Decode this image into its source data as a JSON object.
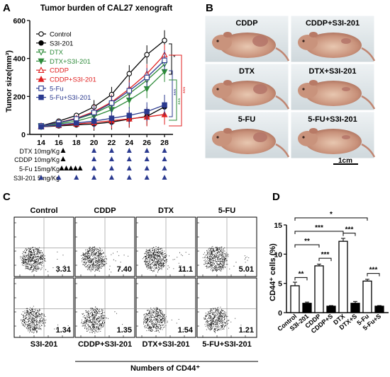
{
  "panel_letters": [
    "A",
    "B",
    "C",
    "D"
  ],
  "panel_a": {
    "title": "Tumor burden of CAL27 xenograft",
    "ylabel": "Tumor size(mm³)",
    "legend": [
      "Control",
      "S3I-201",
      "DTX",
      "DTX+S3I-201",
      "CDDP",
      "CDDP+S3I-201",
      "5-Fu",
      "5-Fu+S3I-201"
    ],
    "significance": [
      "*",
      "***",
      "***",
      "***"
    ],
    "schedule_rows": [
      "DTX 10mg/Kg",
      "CDDP 10mg/Kg",
      "5-Fu 15mg/Kg",
      "S3I-201 5mg/Kg"
    ]
  },
  "chart_data": [
    {
      "type": "line",
      "title": "Tumor burden of CAL27 xenograft",
      "xlabel": "",
      "ylabel": "Tumor size(mm³)",
      "x": [
        14,
        16,
        18,
        20,
        22,
        24,
        26,
        28
      ],
      "ylim": [
        0,
        600
      ],
      "yticks": [
        0,
        200,
        400,
        600
      ],
      "series": [
        {
          "name": "Control",
          "values": [
            45,
            70,
            100,
            145,
            210,
            320,
            420,
            495
          ],
          "color": "#000000",
          "marker": "open-circle"
        },
        {
          "name": "S3I-201",
          "values": [
            40,
            45,
            50,
            55,
            65,
            80,
            95,
            145
          ],
          "color": "#000000",
          "marker": "filled-circle"
        },
        {
          "name": "DTX",
          "values": [
            45,
            60,
            80,
            110,
            155,
            215,
            285,
            370
          ],
          "color": "#2e8b3a",
          "marker": "open-triangle-down"
        },
        {
          "name": "DTX+S3I-201",
          "values": [
            40,
            55,
            70,
            95,
            130,
            180,
            240,
            330
          ],
          "color": "#2e8b3a",
          "marker": "filled-triangle-down"
        },
        {
          "name": "CDDP",
          "values": [
            45,
            62,
            85,
            120,
            170,
            240,
            320,
            420
          ],
          "color": "#e02020",
          "marker": "open-triangle-up"
        },
        {
          "name": "CDDP+S3I-201",
          "values": [
            40,
            48,
            55,
            62,
            72,
            82,
            92,
            105
          ],
          "color": "#e02020",
          "marker": "filled-triangle-up"
        },
        {
          "name": "5-Fu",
          "values": [
            45,
            62,
            82,
            115,
            165,
            230,
            300,
            390
          ],
          "color": "#2b3a8f",
          "marker": "open-square"
        },
        {
          "name": "5-Fu+S3I-201",
          "values": [
            40,
            50,
            60,
            70,
            85,
            100,
            120,
            155
          ],
          "color": "#2b3a8f",
          "marker": "filled-square"
        }
      ]
    },
    {
      "type": "bar",
      "title": "",
      "xlabel": "",
      "ylabel": "CD44⁺ cells (%)",
      "categories": [
        "Control",
        "S3I-201",
        "CDDP",
        "CDDP+S",
        "DTX",
        "DTX+S",
        "5-Fu",
        "5-Fu+S"
      ],
      "values": [
        4.6,
        1.6,
        8.0,
        1.1,
        12.2,
        1.6,
        5.4,
        1.1
      ],
      "errors": [
        0.6,
        0.2,
        0.3,
        0.1,
        0.5,
        0.3,
        0.3,
        0.1
      ],
      "fill": [
        "white",
        "black",
        "white",
        "black",
        "white",
        "black",
        "white",
        "black"
      ],
      "ylim": [
        0,
        15
      ],
      "yticks": [
        0,
        5,
        10,
        15
      ],
      "significance": [
        {
          "pair": [
            0,
            1
          ],
          "label": "**"
        },
        {
          "pair": [
            2,
            3
          ],
          "label": "***"
        },
        {
          "pair": [
            4,
            5
          ],
          "label": "***"
        },
        {
          "pair": [
            6,
            7
          ],
          "label": "***"
        },
        {
          "pair": [
            0,
            2
          ],
          "label": "**"
        },
        {
          "pair": [
            0,
            4
          ],
          "label": "***"
        },
        {
          "pair": [
            0,
            6
          ],
          "label": "*"
        }
      ]
    }
  ],
  "panel_b": {
    "labels": [
      "CDDP",
      "CDDP+S3I-201",
      "DTX",
      "DTX+S3I-201",
      "5-FU",
      "5-FU+S3I-201"
    ],
    "scale_bar": "1cm"
  },
  "panel_c": {
    "top_labels": [
      "Control",
      "CDDP",
      "DTX",
      "5-FU"
    ],
    "bottom_labels": [
      "S3I-201",
      "CDDP+S3I-201",
      "DTX+S3I-201",
      "5-FU+S3I-201"
    ],
    "top_values": [
      "3.31",
      "7.40",
      "11.1",
      "5.01"
    ],
    "bottom_values": [
      "1.34",
      "1.35",
      "1.54",
      "1.21"
    ],
    "xlabel": "Numbers of CD44⁺"
  }
}
